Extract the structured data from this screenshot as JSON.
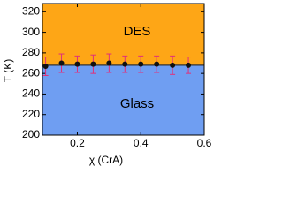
{
  "chart_data": {
    "type": "scatter",
    "x_label": "χ (CrA)",
    "y_label": "T (K)",
    "annotations": [
      "DES",
      "Glass"
    ],
    "region_colors": [
      "#fea616",
      "#6f9ef2"
    ],
    "boundary": 268,
    "x": [
      0.1,
      0.15,
      0.2,
      0.25,
      0.3,
      0.35,
      0.4,
      0.45,
      0.5,
      0.55
    ],
    "series": [
      {
        "color": "#111111",
        "error_color": "#e0307a",
        "values": [
          267,
          270,
          269,
          269,
          270,
          269,
          269,
          269,
          268,
          268
        ],
        "errors": [
          9,
          9,
          8,
          9,
          9,
          8,
          8,
          8,
          9,
          8
        ]
      }
    ],
    "xlim": [
      0.09,
      0.6
    ],
    "xticks": [
      0.2,
      0.4,
      0.6
    ],
    "ylim": [
      200,
      328
    ],
    "yticks": [
      200,
      220,
      240,
      260,
      280,
      300,
      320
    ]
  }
}
